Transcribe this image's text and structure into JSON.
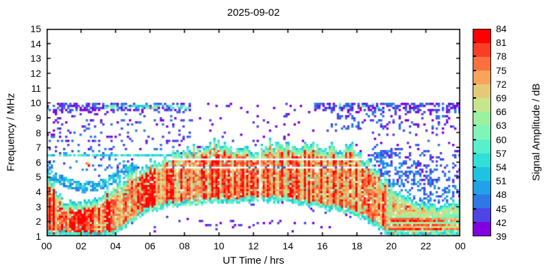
{
  "title": "2025-09-02",
  "axes": {
    "x": {
      "label": "UT Time / hrs",
      "range": [
        0,
        24
      ],
      "tick_labels": [
        "00",
        "02",
        "04",
        "06",
        "08",
        "10",
        "12",
        "14",
        "16",
        "18",
        "20",
        "22",
        "00"
      ]
    },
    "y": {
      "label": "Frequency / MHz",
      "range": [
        1,
        15
      ],
      "tick_labels": [
        "1",
        "2",
        "3",
        "4",
        "5",
        "6",
        "7",
        "8",
        "9",
        "10",
        "11",
        "12",
        "13",
        "14",
        "15"
      ]
    }
  },
  "colorbar": {
    "label": "Signal Amplitude / dB",
    "min": 39,
    "max": 84,
    "step": 3,
    "tick_labels": [
      "39",
      "42",
      "45",
      "48",
      "51",
      "54",
      "57",
      "60",
      "63",
      "66",
      "69",
      "72",
      "75",
      "78",
      "81",
      "84"
    ],
    "colors_low_to_high": [
      "#8000DF",
      "#4E44E6",
      "#2E78E6",
      "#22A0E8",
      "#1EC3E2",
      "#30DFD8",
      "#56F0CB",
      "#7FF6B8",
      "#9DF09F",
      "#C7E68C",
      "#E6C976",
      "#F9A45A",
      "#FA7040",
      "#FB3D26",
      "#FD0100"
    ]
  },
  "chart_data": {
    "type": "heatmap",
    "title": "2025-09-02",
    "xlabel": "UT Time / hrs",
    "ylabel": "Frequency / MHz",
    "xlim": [
      0,
      24
    ],
    "ylim": [
      1,
      15
    ],
    "amplitude_db_range": [
      39,
      84
    ],
    "band": {
      "hours": [
        0,
        1,
        2,
        3,
        4,
        5,
        6,
        7,
        8,
        9,
        10,
        11,
        12,
        13,
        14,
        15,
        16,
        17,
        18,
        19,
        20,
        21,
        22,
        23,
        24
      ],
      "top_mhz": [
        5.0,
        3.4,
        3.2,
        3.6,
        4.4,
        5.2,
        5.9,
        6.4,
        6.7,
        7.1,
        7.3,
        7.0,
        6.9,
        7.0,
        7.1,
        7.2,
        7.1,
        7.0,
        6.8,
        5.6,
        4.2,
        3.6,
        3.2,
        3.0,
        3.3
      ],
      "bottom_mhz": [
        1.0,
        1.0,
        1.0,
        1.0,
        1.1,
        2.0,
        2.7,
        3.0,
        3.1,
        3.2,
        3.3,
        3.3,
        3.4,
        3.4,
        3.3,
        3.1,
        2.9,
        2.7,
        2.4,
        1.7,
        1.0,
        1.0,
        1.0,
        1.0,
        1.0
      ]
    },
    "night_arc": {
      "hours": [
        0,
        1,
        2,
        3,
        4,
        5
      ],
      "freq_mhz": [
        5.3,
        4.7,
        4.3,
        4.4,
        5.0,
        5.6
      ]
    },
    "evening_noise_wedge": {
      "hours": [
        19,
        20,
        21,
        22,
        23,
        24
      ],
      "top_mhz": [
        6.9,
        6.8,
        6.3,
        5.2,
        4.6,
        4.4
      ],
      "p": 0.38,
      "amp": [
        42,
        51
      ]
    },
    "white_lines": [
      {
        "f": [
          6.08,
          6.22
        ],
        "t": [
          6.9,
          18.6
        ]
      },
      {
        "f": [
          5.58,
          5.72
        ],
        "t": [
          6.9,
          19.2
        ]
      }
    ],
    "white_line_dot_row": {
      "f": [
        5.6,
        5.72
      ],
      "t": [
        7.0,
        18.6
      ],
      "p": 0.12,
      "amp": [
        42,
        48
      ]
    },
    "data_gap_hours": [
      12.27,
      12.45
    ],
    "interference_lines": [
      {
        "f": [
          6.35,
          6.55
        ],
        "t": [
          0,
          8.3
        ],
        "p": 0.8,
        "amp": [
          51,
          60
        ]
      },
      {
        "f": [
          9.6,
          9.82
        ],
        "t": [
          3.3,
          8.3
        ],
        "p": 0.65,
        "amp": [
          51,
          63
        ]
      }
    ],
    "hot_spots": [
      {
        "t": [
          2.05,
          2.5
        ],
        "f": [
          5.75,
          6.05
        ],
        "p": 0.5,
        "amp": [
          69,
          84
        ]
      },
      {
        "t": [
          18.2,
          18.45
        ],
        "f": [
          9.6,
          9.78
        ],
        "p": 0.5,
        "amp": [
          75,
          84
        ]
      },
      {
        "t": [
          4.3,
          7.0
        ],
        "f": [
          9.62,
          9.8
        ],
        "p": 0.12,
        "amp": [
          66,
          78
        ]
      }
    ],
    "noise_regions": [
      {
        "t": [
          0,
          8.3
        ],
        "f": [
          9.5,
          10.05
        ],
        "p": 0.5,
        "amp": [
          39,
          48
        ]
      },
      {
        "t": [
          0,
          8.3
        ],
        "f": [
          6.8,
          9.5
        ],
        "p": 0.1,
        "amp": [
          39,
          48
        ],
        "row_streaks": true
      },
      {
        "t": [
          0,
          4.6
        ],
        "f": [
          5.4,
          6.8
        ],
        "p": 0.13,
        "amp": [
          42,
          51
        ]
      },
      {
        "t": [
          8.3,
          15.5
        ],
        "f": [
          7.4,
          10.05
        ],
        "p": 0.03,
        "amp": [
          39,
          45
        ]
      },
      {
        "t": [
          15.5,
          24
        ],
        "f": [
          9.4,
          10.05
        ],
        "p": 0.5,
        "amp": [
          39,
          48
        ]
      },
      {
        "t": [
          16.5,
          24
        ],
        "f": [
          8.2,
          9.4
        ],
        "p": 0.18,
        "amp": [
          39,
          48
        ]
      },
      {
        "t": [
          17,
          19.6
        ],
        "f": [
          9.5,
          9.95
        ],
        "p": 0.25,
        "amp": [
          54,
          63
        ]
      },
      {
        "t": [
          4.3,
          17
        ],
        "f": [
          1.6,
          2.15
        ],
        "p": 0.06,
        "amp": [
          39,
          46
        ]
      },
      {
        "t": [
          19.6,
          22.3
        ],
        "f": [
          2.5,
          2.75
        ],
        "p": 0.3,
        "amp": [
          48,
          56
        ]
      },
      {
        "t": [
          18.8,
          24
        ],
        "f": [
          4.4,
          8.2
        ],
        "p": 0.07,
        "amp": [
          39,
          46
        ]
      },
      {
        "t": [
          21,
          24
        ],
        "f": [
          4.8,
          6.8
        ],
        "p": 0.15,
        "amp": [
          42,
          48
        ]
      },
      {
        "t": [
          18.9,
          20.7
        ],
        "f": [
          6.2,
          6.9
        ],
        "p": 0.3,
        "amp": [
          42,
          48
        ]
      },
      {
        "t": [
          0,
          24
        ],
        "f": [
          1,
          10.05
        ],
        "p": 0.012,
        "amp": [
          39,
          45
        ]
      }
    ]
  }
}
